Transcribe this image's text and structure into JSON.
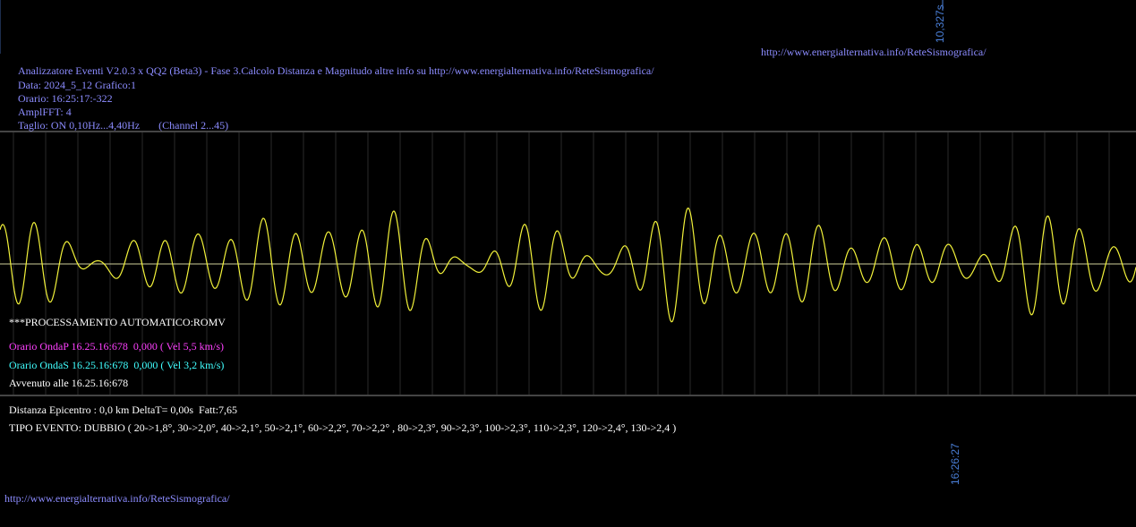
{
  "top_marker": "10,327s",
  "top_url": "http://www.energialternativa.info/ReteSismografica/",
  "header": {
    "lines": [
      "Analizzatore Eventi V2.0.3 x QQ2 (Beta3) - Fase 3.Calcolo Distanza e Magnitudo altre info su http://www.energialternativa.info/ReteSismografica/",
      "Data: 2024_5_12 Grafico:1",
      "Orario: 16:25:17:-322",
      "AmplFFT: 4",
      "Taglio: ON 0,10Hz...4,40Hz       (Channel 2...45)"
    ]
  },
  "processing": {
    "title": "***PROCESSAMENTO AUTOMATICO:ROMV",
    "onda_p": "Orario OndaP 16.25.16:678  0,000 ( Vel 5,5 km/s)",
    "onda_s": "Orario OndaS 16.25.16:678  0,000 ( Vel 3,2 km/s)",
    "avvenuto": "Avvenuto alle 16.25.16:678"
  },
  "summary": {
    "distanza": "Distanza Epicentro : 0,0 km DeltaT= 0,00s  Fatt:7,65",
    "tipo_evento": "TIPO EVENTO: DUBBIO ( 20->1,8°, 30->2,0°, 40->2,1°, 50->2,1°, 60->2,2°, 70->2,2° , 80->2,3°, 90->2,3°, 100->2,3°, 110->2,3°, 120->2,4°, 130->2,4 )"
  },
  "time_marker": "16:26:27",
  "footer_url": "http://www.energialternativa.info/ReteSismografica/"
}
